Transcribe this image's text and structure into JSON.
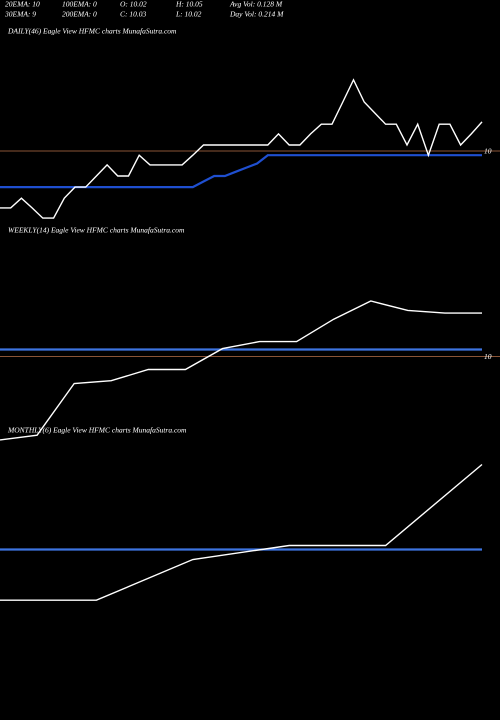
{
  "header": {
    "rows": [
      [
        "20EMA: 10",
        "100EMA: 0",
        "O: 10.02",
        "H: 10.05",
        "Avg Vol: 0.128 M"
      ],
      [
        "30EMA: 9",
        "200EMA: 0",
        "C: 10.03",
        "L: 10.02",
        "Day Vol: 0.214 M"
      ]
    ]
  },
  "chart_data": [
    {
      "type": "line",
      "title": "DAILY(46) Eagle  View  HFMC charts MunafaSutra.com",
      "ylim": [
        9.84,
        10.24
      ],
      "reference_line": 10,
      "series": [
        {
          "color": "#ffffff",
          "values": [
            9.877,
            9.877,
            9.898,
            9.877,
            9.855,
            9.855,
            9.898,
            9.922,
            9.922,
            9.946,
            9.97,
            9.946,
            9.946,
            9.991,
            9.97,
            9.97,
            9.97,
            9.97,
            9.991,
            10.013,
            10.013,
            10.013,
            10.013,
            10.013,
            10.013,
            10.013,
            10.037,
            10.013,
            10.013,
            10.037,
            10.058,
            10.058,
            10.106,
            10.154,
            10.106,
            10.082,
            10.058,
            10.058,
            10.013,
            10.058,
            9.991,
            10.058,
            10.058,
            10.013,
            10.037,
            10.063
          ]
        },
        {
          "color": "#1f4fd0",
          "values": [
            9.922,
            9.922,
            9.922,
            9.922,
            9.922,
            9.922,
            9.922,
            9.922,
            9.922,
            9.922,
            9.922,
            9.922,
            9.922,
            9.922,
            9.922,
            9.922,
            9.922,
            9.922,
            9.922,
            9.934,
            9.946,
            9.946,
            9.955,
            9.964,
            9.973,
            9.991,
            9.991,
            9.991,
            9.991,
            9.991,
            9.991,
            9.991,
            9.991,
            9.991,
            9.991,
            9.991,
            9.991,
            9.991,
            9.991,
            9.991,
            9.991,
            9.991,
            9.991,
            9.991,
            9.991,
            9.991
          ]
        }
      ]
    },
    {
      "type": "line",
      "title": "WEEKLY(14) Eagle  View  HFMC charts MunafaSutra.com",
      "ylim": [
        9.81,
        10.25
      ],
      "reference_line": 10,
      "series": [
        {
          "color": "#ffffff",
          "values": [
            9.821,
            9.831,
            9.942,
            9.948,
            9.972,
            9.972,
            10.017,
            10.032,
            10.032,
            10.08,
            10.119,
            10.099,
            10.093,
            10.093
          ]
        },
        {
          "color": "#3d74e0",
          "values": [
            10.015,
            10.015,
            10.015,
            10.015,
            10.015,
            10.015,
            10.015,
            10.015,
            10.015,
            10.015,
            10.015,
            10.015,
            10.015,
            10.015
          ]
        }
      ]
    },
    {
      "type": "line",
      "title": "MONTHLY(6) Eagle  View  HFMC charts MunafaSutra.com",
      "ylim": [
        9.8,
        10.22
      ],
      "series": [
        {
          "color": "#ffffff",
          "values": [
            9.888,
            9.888,
            9.978,
            10.009,
            10.009,
            10.188
          ]
        },
        {
          "color": "#3d74e0",
          "values": [
            10.0,
            10.0,
            10.0,
            10.0,
            10.0,
            10.0
          ]
        }
      ]
    }
  ]
}
